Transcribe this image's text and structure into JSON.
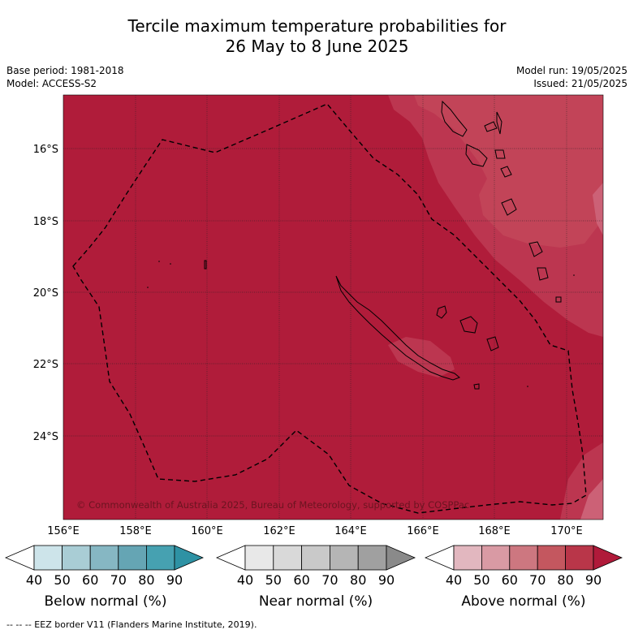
{
  "title_line1": "Tercile maximum temperature probabilities for",
  "title_line2": "26 May to 8 June 2025",
  "base_period": "Base period: 1981-2018",
  "model": "Model: ACCESS-S2",
  "model_run": "Model run: 19/05/2025",
  "issued": "Issued: 21/05/2025",
  "copyright": "© Commonwealth of Australia 2025, Bureau of Meteorology, supported by COSPPac",
  "lat_labels": [
    "16°S",
    "18°S",
    "20°S",
    "22°S",
    "24°S"
  ],
  "lon_labels": [
    "156°E",
    "158°E",
    "160°E",
    "162°E",
    "164°E",
    "166°E",
    "168°E",
    "170°E"
  ],
  "colorbars": [
    {
      "label": "Below normal (%)",
      "ticks": [
        "40",
        "50",
        "60",
        "70",
        "80",
        "90"
      ],
      "colors": [
        "#cde4ea",
        "#a9cdd5",
        "#86b7c3",
        "#65a5b4",
        "#46a1b1",
        "#2e92a4"
      ]
    },
    {
      "label": "Near normal (%)",
      "ticks": [
        "40",
        "50",
        "60",
        "70",
        "80",
        "90"
      ],
      "colors": [
        "#e8e8e8",
        "#d9d9d9",
        "#c9c9c9",
        "#b5b5b5",
        "#a0a0a0",
        "#8a8a8a"
      ]
    },
    {
      "label": "Above normal (%)",
      "ticks": [
        "40",
        "50",
        "60",
        "70",
        "80",
        "90"
      ],
      "colors": [
        "#e2b7bf",
        "#d99aa4",
        "#cd7780",
        "#c4575f",
        "#b93649",
        "#b01a3a"
      ]
    }
  ],
  "footer": "--  --  -- EEZ border V11 (Flanders Marine Institute, 2019).",
  "colors": {
    "dominant": "#b01c3a",
    "lighter": "#c03b53",
    "lightest": "#d26a7c"
  }
}
